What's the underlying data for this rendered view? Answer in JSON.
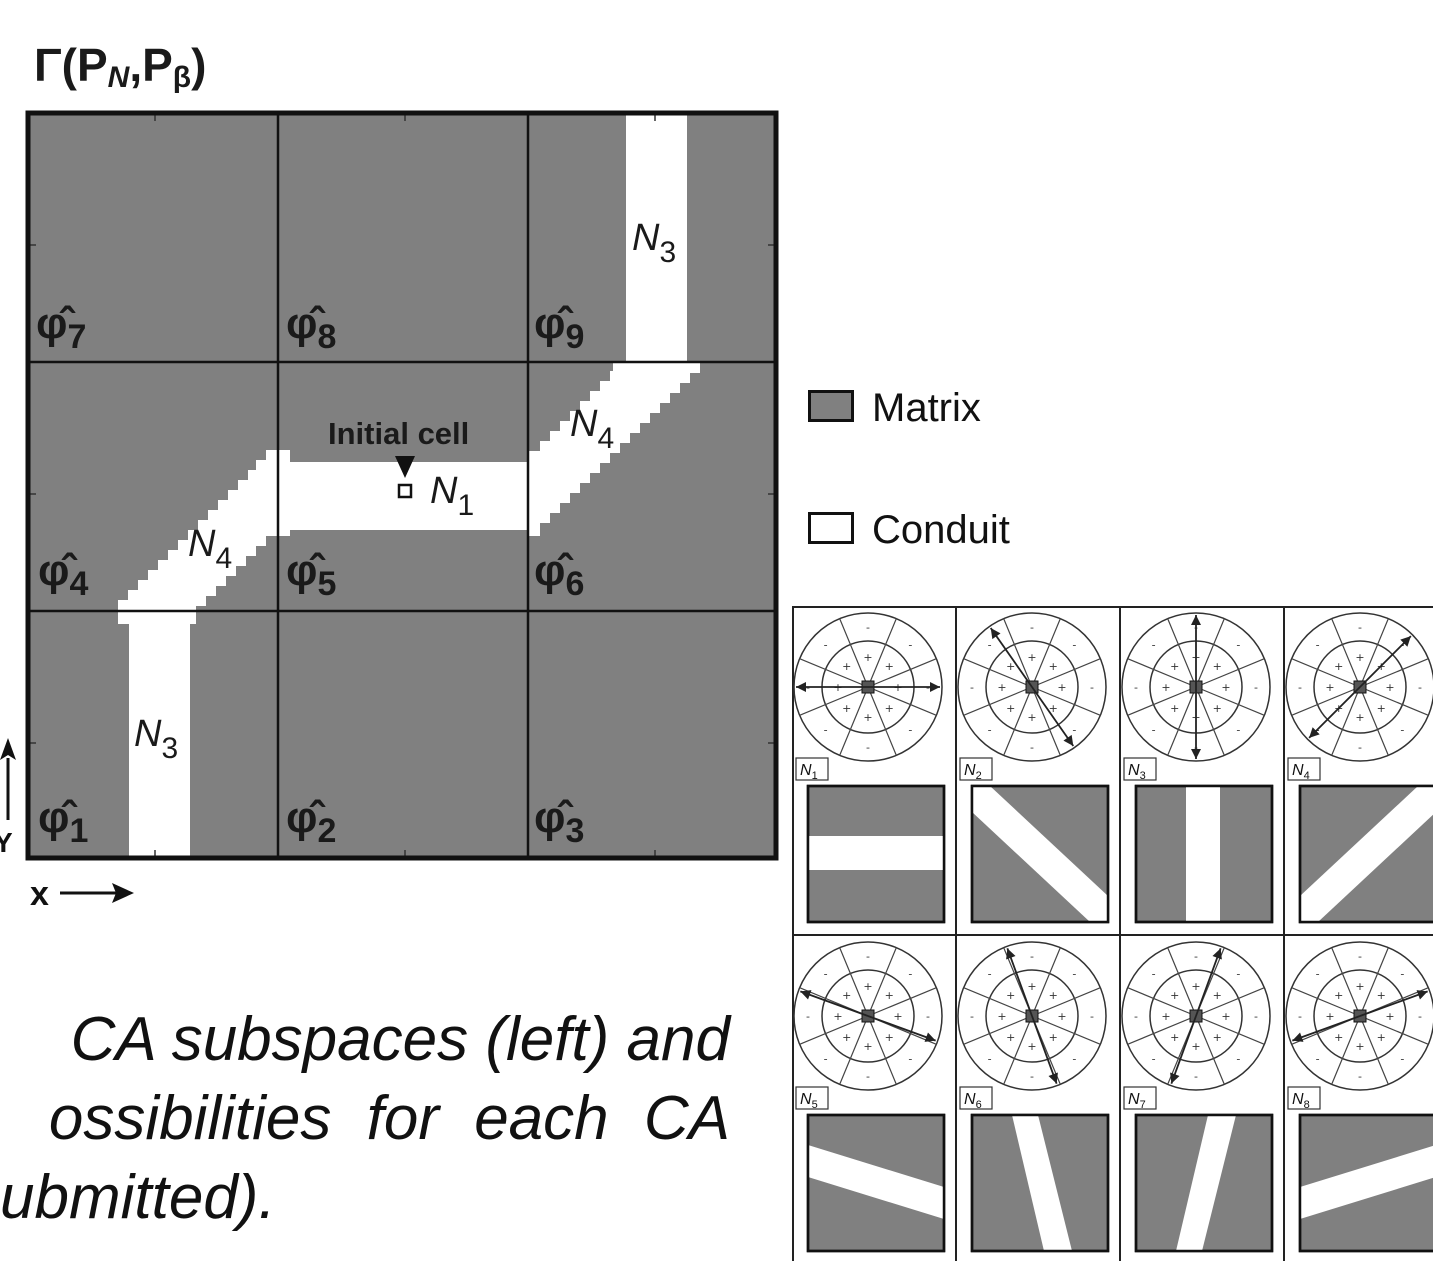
{
  "title": {
    "gamma": "Γ(P",
    "sub_n": "N",
    "comma": ",P",
    "sub_beta": "β",
    "close": ")"
  },
  "subspace_labels": [
    {
      "symbol": "φ̂",
      "index": "7"
    },
    {
      "symbol": "φ̂",
      "index": "8"
    },
    {
      "symbol": "φ̂",
      "index": "9"
    },
    {
      "symbol": "φ̂",
      "index": "4"
    },
    {
      "symbol": "φ̂",
      "index": "5"
    },
    {
      "symbol": "φ̂",
      "index": "6"
    },
    {
      "symbol": "φ̂",
      "index": "1"
    },
    {
      "symbol": "φ̂",
      "index": "2"
    },
    {
      "symbol": "φ̂",
      "index": "3"
    }
  ],
  "conduit_labels": [
    {
      "letter": "N",
      "index": "3"
    },
    {
      "letter": "N",
      "index": "4"
    },
    {
      "letter": "N",
      "index": "1"
    },
    {
      "letter": "N",
      "index": "4"
    },
    {
      "letter": "N",
      "index": "3"
    }
  ],
  "initial_cell_label": "Initial cell",
  "axes": {
    "x": "x",
    "y": "Y"
  },
  "legend": {
    "matrix": "Matrix",
    "conduit": "Conduit"
  },
  "caption": {
    "line1": "CA subspaces (left) and",
    "line2": "ossibilities for each CA",
    "line3": "ubmitted)."
  },
  "neighborhoods": [
    {
      "letter": "N",
      "index": "1"
    },
    {
      "letter": "N",
      "index": "2"
    },
    {
      "letter": "N",
      "index": "3"
    },
    {
      "letter": "N",
      "index": "4"
    },
    {
      "letter": "N",
      "index": "5"
    },
    {
      "letter": "N",
      "index": "6"
    },
    {
      "letter": "N",
      "index": "7"
    },
    {
      "letter": "N",
      "index": "8"
    }
  ],
  "colors": {
    "matrix": "#808080",
    "conduit": "#ffffff",
    "line": "#111111"
  }
}
